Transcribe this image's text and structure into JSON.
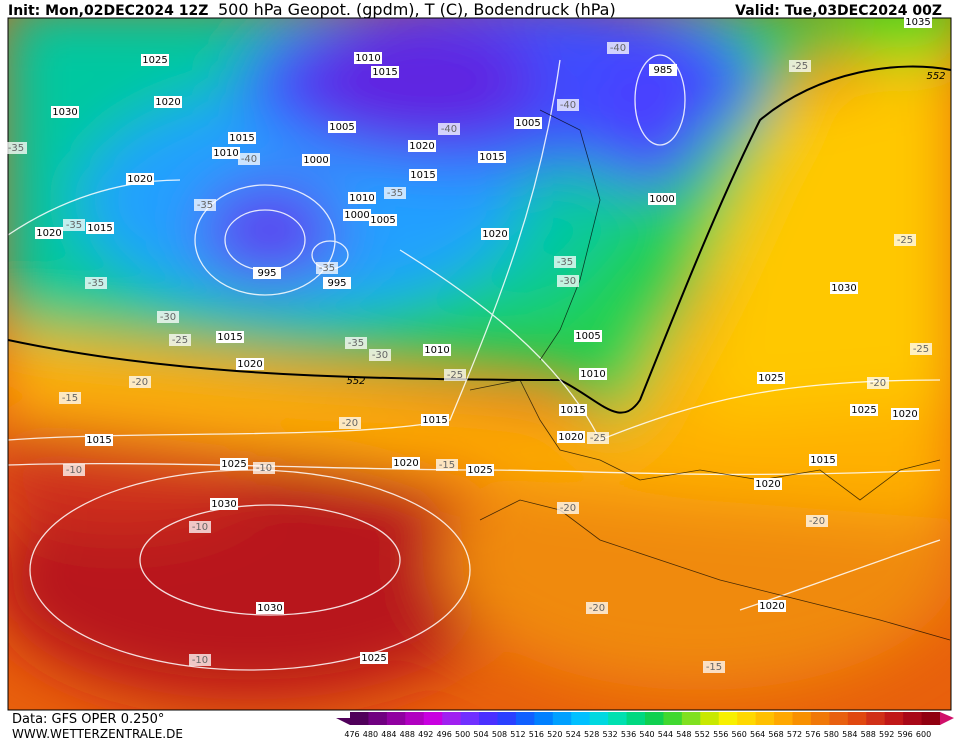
{
  "header": {
    "init": "Init: Mon,02DEC2024 12Z",
    "title": "500 hPa Geopot. (gpdm), T (C), Bodendruck (hPa)",
    "valid": "Valid: Tue,03DEC2024 00Z"
  },
  "footer": {
    "data": "Data: GFS OPER 0.250°",
    "site": "WWW.WETTERZENTRALE.DE"
  },
  "colorbar": {
    "ticks": [
      476,
      480,
      484,
      488,
      492,
      496,
      500,
      504,
      508,
      512,
      516,
      520,
      524,
      528,
      532,
      536,
      540,
      544,
      548,
      552,
      556,
      560,
      564,
      568,
      572,
      576,
      580,
      584,
      588,
      592,
      596,
      600
    ]
  },
  "labels": {
    "isobars": [
      "1025",
      "1030",
      "1020",
      "1010",
      "1015",
      "1005",
      "1015",
      "1010",
      "1000",
      "1020",
      "1015",
      "1010",
      "1000",
      "1005",
      "1020",
      "1015",
      "1020",
      "995",
      "995",
      "985",
      "1005",
      "1015",
      "1000",
      "1020",
      "1005",
      "1010",
      "1015",
      "1020",
      "1015",
      "1020",
      "1010",
      "1015",
      "1015",
      "1025",
      "1020",
      "1025",
      "1030",
      "1030",
      "1025",
      "1030",
      "1025",
      "1025",
      "1020",
      "1015",
      "1020",
      "1020",
      "1035"
    ],
    "temperatures": [
      "-40",
      "-40",
      "-40",
      "-40",
      "-35",
      "-35",
      "-35",
      "-35",
      "-35",
      "-35",
      "-35",
      "-30",
      "-30",
      "-25",
      "-35",
      "-30",
      "-25",
      "-25",
      "-25",
      "-25",
      "-20",
      "-15",
      "-20",
      "-25",
      "-10",
      "-10",
      "-15",
      "-20",
      "-20",
      "-10",
      "-20",
      "-20",
      "-10",
      "-15"
    ],
    "geopotential": [
      "552",
      "552"
    ]
  }
}
